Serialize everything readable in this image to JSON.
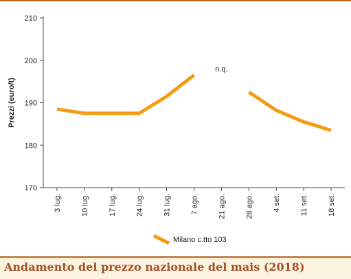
{
  "caption": "Andamento del prezzo nazionale del mais (2018)",
  "colors": {
    "series": "#f39c12",
    "accent": "#b5651d",
    "caption_bg": "#fbf3df",
    "caption_text": "#a0522d"
  },
  "chart_data": {
    "type": "line",
    "title": "",
    "xlabel": "",
    "ylabel": "Prezzi (euro/t)",
    "ylim": [
      170,
      210
    ],
    "yticks": [
      170,
      180,
      190,
      200,
      210
    ],
    "grid": false,
    "legend_position": "bottom-center",
    "categories": [
      "3 lug.",
      "10 lug.",
      "17 lug.",
      "24 lug.",
      "31 lug.",
      "7 ago.",
      "21 ago.",
      "28 ago.",
      "4 set.",
      "11 set.",
      "18 set."
    ],
    "series": [
      {
        "name": "Milano  c.tto 103",
        "values": [
          188.5,
          187.5,
          187.5,
          187.5,
          191.5,
          196.5,
          null,
          192.5,
          188.2,
          185.5,
          183.5
        ]
      }
    ],
    "annotations": [
      {
        "text": "n.q.",
        "category": "21 ago.",
        "value": 198
      }
    ]
  }
}
